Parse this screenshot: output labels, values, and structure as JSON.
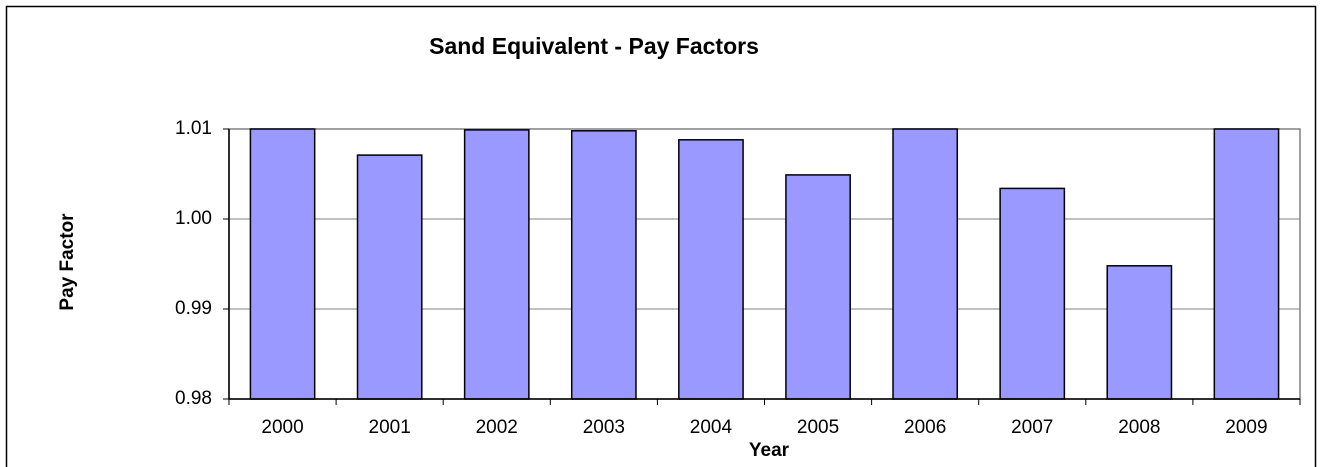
{
  "chart_data": {
    "type": "bar",
    "title": "Sand Equivalent - Pay Factors",
    "x_label": "Year",
    "y_label": "Pay Factor",
    "categories": [
      "2000",
      "2001",
      "2002",
      "2003",
      "2004",
      "2005",
      "2006",
      "2007",
      "2008",
      "2009"
    ],
    "values": [
      1.01,
      1.0071,
      1.0099,
      1.0098,
      1.0088,
      1.0049,
      1.01,
      1.0034,
      0.9948,
      1.01
    ],
    "color": "#9999ff",
    "ylim": [
      0.98,
      1.01
    ],
    "yticks": [
      0.98,
      0.99,
      {
        "value": 1,
        "label": "1.00"
      },
      1.01
    ],
    "grid": true
  }
}
